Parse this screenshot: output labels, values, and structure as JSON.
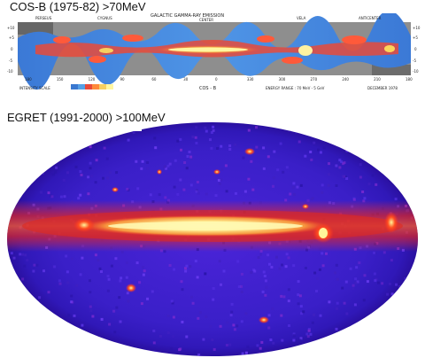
{
  "cos_b": {
    "caption": "COS-B (1975-82) >70MeV",
    "header_title": "GALACTIC GAMMA-RAY EMISSION",
    "header_regions": [
      "PERSEUS",
      "CYGNUS",
      "CENTER",
      "VELA",
      "ANTICENTER"
    ],
    "lat_ticks": [
      "+10",
      "+5",
      "0",
      "-5",
      "-10"
    ],
    "long_ticks": [
      "180",
      "150",
      "120",
      "90",
      "60",
      "30",
      "0",
      "330",
      "300",
      "270",
      "240",
      "210",
      "180"
    ],
    "footer_scale": "INTENSITY SCALE",
    "footer_detector": "COS - B",
    "footer_energy": "ENERGY RANGE : 70 MeV - 5 GeV",
    "footer_date": "DECEMBER 1978",
    "colors": {
      "background": "#9a9a9a",
      "band": "#5aa0e0",
      "core": "#f5e85a",
      "hot": "#ff4b2a",
      "dark": "#4a4a4a"
    }
  },
  "egret": {
    "caption": "EGRET (1991-2000) >100MeV",
    "colors": {
      "sky": "#3a1fc8",
      "edge": "#2a10a0",
      "glow": "#ff3020",
      "core": "#fff59a"
    }
  }
}
